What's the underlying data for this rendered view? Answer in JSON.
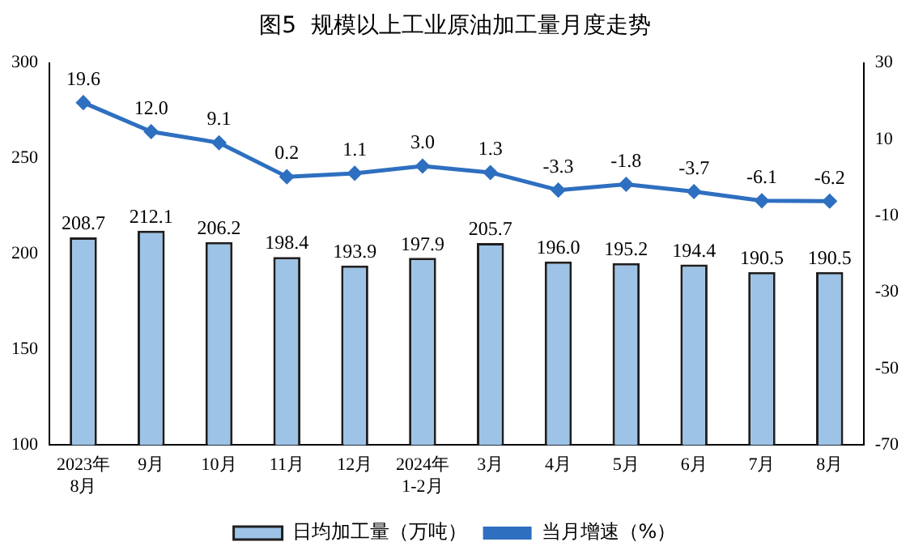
{
  "chart_data": {
    "type": "bar",
    "title": "图5  规模以上工业原油加工量月度走势",
    "categories": [
      "2023年\n8月",
      "9月",
      "10月",
      "11月",
      "12月",
      "2024年\n1-2月",
      "3月",
      "4月",
      "5月",
      "6月",
      "7月",
      "8月"
    ],
    "series": [
      {
        "name": "日均加工量（万吨）",
        "color": "#9dc3e6",
        "values": [
          208.7,
          212.1,
          206.2,
          198.4,
          193.9,
          197.9,
          205.7,
          196.0,
          195.2,
          194.4,
          190.5,
          190.5
        ],
        "value_labels": [
          "208.7",
          "212.1",
          "206.2",
          "198.4",
          "193.9",
          "197.9",
          "205.7",
          "196.0",
          "195.2",
          "194.4",
          "190.5",
          "190.5"
        ]
      },
      {
        "name": "当月增速（%）",
        "type": "line",
        "axis": "y2",
        "color": "#2e6fc0",
        "values": [
          19.6,
          12.0,
          9.1,
          0.2,
          1.1,
          3.0,
          1.3,
          -3.3,
          -1.8,
          -3.7,
          -6.1,
          -6.2
        ],
        "value_labels": [
          "19.6",
          "12.0",
          "9.1",
          "0.2",
          "1.1",
          "3.0",
          "1.3",
          "-3.3",
          "-1.8",
          "-3.7",
          "-6.1",
          "-6.2"
        ]
      }
    ],
    "ylim": [
      100,
      300
    ],
    "yticks": [
      100,
      150,
      200,
      250,
      300
    ],
    "y2lim": [
      -70,
      30
    ],
    "y2ticks": [
      -70,
      -50,
      -30,
      -10,
      10,
      30
    ],
    "grid": false,
    "legend": "bottom",
    "marker": "diamond",
    "line_style": "solid"
  }
}
